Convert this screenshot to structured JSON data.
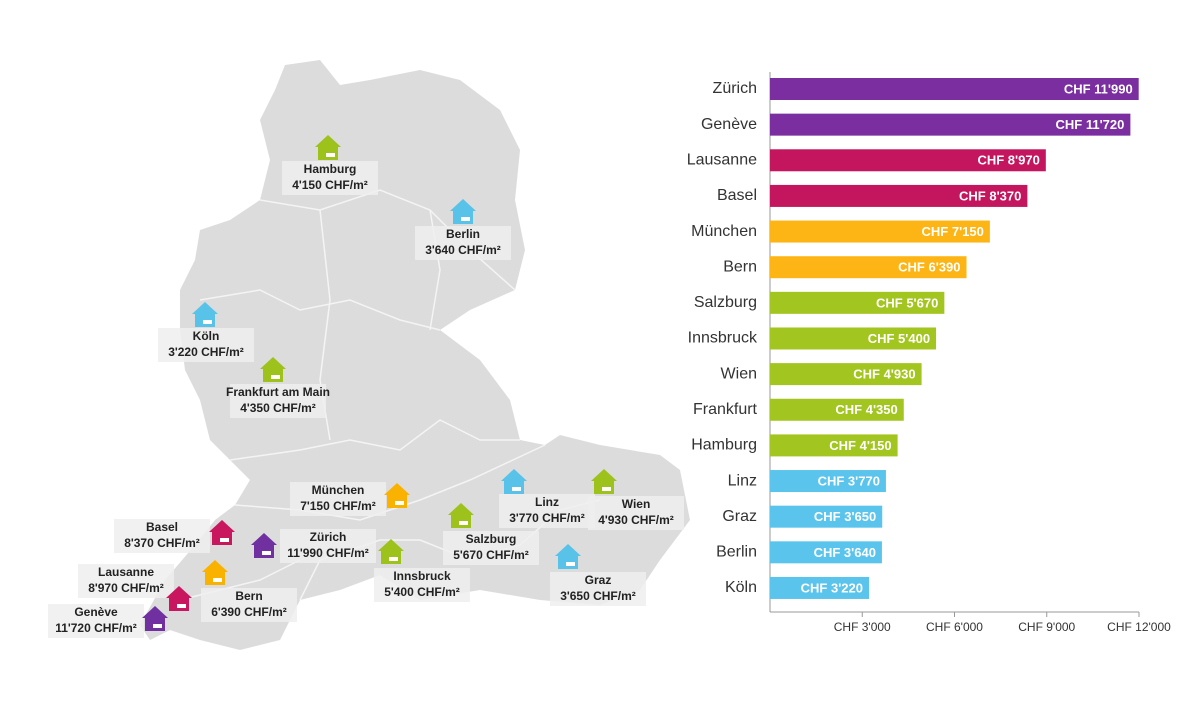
{
  "map": {
    "markers": [
      {
        "name": "Hamburg",
        "price": "4'150 CHF/m²",
        "color": "#9dc21b"
      },
      {
        "name": "Berlin",
        "price": "3'640 CHF/m²",
        "color": "#58c2e8"
      },
      {
        "name": "Köln",
        "price": "3'220 CHF/m²",
        "color": "#58c2e8"
      },
      {
        "name": "Frankfurt am Main",
        "price": "4'350 CHF/m²",
        "color": "#9dc21b"
      },
      {
        "name": "München",
        "price": "7'150 CHF/m²",
        "color": "#f9b200"
      },
      {
        "name": "Zürich",
        "price": "11'990 CHF/m²",
        "color": "#7030a0"
      },
      {
        "name": "Basel",
        "price": "8'370 CHF/m²",
        "color": "#c8175f"
      },
      {
        "name": "Lausanne",
        "price": "8'970 CHF/m²",
        "color": "#c8175f"
      },
      {
        "name": "Genève",
        "price": "11'720 CHF/m²",
        "color": "#7030a0"
      },
      {
        "name": "Bern",
        "price": "6'390 CHF/m²",
        "color": "#f9b200"
      },
      {
        "name": "Innsbruck",
        "price": "5'400 CHF/m²",
        "color": "#9dc21b"
      },
      {
        "name": "Salzburg",
        "price": "5'670 CHF/m²",
        "color": "#9dc21b"
      },
      {
        "name": "Linz",
        "price": "3'770 CHF/m²",
        "color": "#58c2e8"
      },
      {
        "name": "Wien",
        "price": "4'930 CHF/m²",
        "color": "#9dc21b"
      },
      {
        "name": "Graz",
        "price": "3'650 CHF/m²",
        "color": "#58c2e8"
      }
    ]
  },
  "chart_data": {
    "type": "hbar",
    "categories": [
      "Zürich",
      "Genève",
      "Lausanne",
      "Basel",
      "München",
      "Bern",
      "Salzburg",
      "Innsbruck",
      "Wien",
      "Frankfurt",
      "Hamburg",
      "Linz",
      "Graz",
      "Berlin",
      "Köln"
    ],
    "values": [
      11990,
      11720,
      8970,
      8370,
      7150,
      6390,
      5670,
      5400,
      4930,
      4350,
      4150,
      3770,
      3650,
      3640,
      3220
    ],
    "value_labels": [
      "CHF 11'990",
      "CHF 11'720",
      "CHF 8'970",
      "CHF 8'370",
      "CHF 7'150",
      "CHF 6'390",
      "CHF 5'670",
      "CHF 5'400",
      "CHF 4'930",
      "CHF 4'350",
      "CHF 4'150",
      "CHF 3'770",
      "CHF 3'650",
      "CHF 3'640",
      "CHF 3'220"
    ],
    "colors": [
      "#7a2ea0",
      "#7a2ea0",
      "#c4165e",
      "#c4165e",
      "#fdb515",
      "#fdb515",
      "#a3c520",
      "#a3c520",
      "#a3c520",
      "#a3c520",
      "#a3c520",
      "#5bc4ec",
      "#5bc4ec",
      "#5bc4ec",
      "#5bc4ec"
    ],
    "xlim": [
      0,
      12000
    ],
    "xticks": [
      {
        "value": 3000,
        "label": "CHF 3'000"
      },
      {
        "value": 6000,
        "label": "CHF 6'000"
      },
      {
        "value": 9000,
        "label": "CHF 9'000"
      },
      {
        "value": 12000,
        "label": "CHF 12'000"
      }
    ]
  }
}
